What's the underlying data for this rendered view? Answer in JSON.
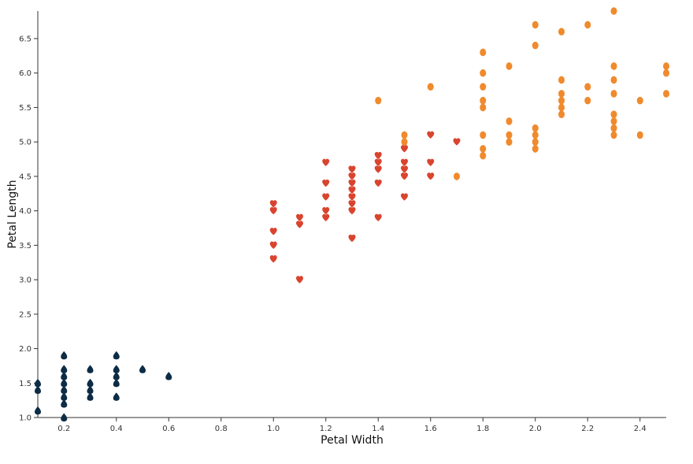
{
  "chart_data": {
    "type": "scatter",
    "xlabel": "Petal Width",
    "ylabel": "Petal Length",
    "xlim": [
      0.1,
      2.5
    ],
    "ylim": [
      1.0,
      6.9
    ],
    "x_ticks": [
      0.2,
      0.4,
      0.6,
      0.8,
      1.0,
      1.2,
      1.4,
      1.6,
      1.8,
      2.0,
      2.2,
      2.4
    ],
    "x_tick_labels": [
      "0.2",
      "0.4",
      "0.6",
      "0.8",
      "1.0",
      "1.2",
      "1.4",
      "1.6",
      "1.8",
      "2.0",
      "2.2",
      "2.4"
    ],
    "y_ticks": [
      1.0,
      1.5,
      2.0,
      2.5,
      3.0,
      3.5,
      4.0,
      4.5,
      5.0,
      5.5,
      6.0,
      6.5
    ],
    "y_tick_labels": [
      "1.0",
      "1.5",
      "2.0",
      "2.5",
      "3.0",
      "3.5",
      "4.0",
      "4.5",
      "5.0",
      "5.5",
      "6.0",
      "6.5"
    ],
    "grid": false,
    "series": [
      {
        "marker": "drop",
        "color": "#0d2c45",
        "points": [
          [
            0.1,
            1.5
          ],
          [
            0.1,
            1.4
          ],
          [
            0.1,
            1.1
          ],
          [
            0.2,
            1.9
          ],
          [
            0.2,
            1.7
          ],
          [
            0.2,
            1.6
          ],
          [
            0.2,
            1.5
          ],
          [
            0.2,
            1.4
          ],
          [
            0.2,
            1.3
          ],
          [
            0.2,
            1.2
          ],
          [
            0.2,
            1.0
          ],
          [
            0.3,
            1.7
          ],
          [
            0.3,
            1.5
          ],
          [
            0.3,
            1.4
          ],
          [
            0.3,
            1.3
          ],
          [
            0.4,
            1.9
          ],
          [
            0.4,
            1.7
          ],
          [
            0.4,
            1.6
          ],
          [
            0.4,
            1.5
          ],
          [
            0.4,
            1.3
          ],
          [
            0.5,
            1.7
          ],
          [
            0.6,
            1.6
          ]
        ]
      },
      {
        "marker": "heart",
        "color": "#d9442f",
        "points": [
          [
            1.0,
            4.1
          ],
          [
            1.0,
            4.0
          ],
          [
            1.0,
            3.7
          ],
          [
            1.0,
            3.5
          ],
          [
            1.0,
            3.3
          ],
          [
            1.1,
            3.9
          ],
          [
            1.1,
            3.8
          ],
          [
            1.1,
            3.0
          ],
          [
            1.2,
            4.7
          ],
          [
            1.2,
            4.4
          ],
          [
            1.2,
            4.2
          ],
          [
            1.2,
            4.0
          ],
          [
            1.2,
            3.9
          ],
          [
            1.3,
            4.6
          ],
          [
            1.3,
            4.5
          ],
          [
            1.3,
            4.4
          ],
          [
            1.3,
            4.3
          ],
          [
            1.3,
            4.2
          ],
          [
            1.3,
            4.1
          ],
          [
            1.3,
            4.0
          ],
          [
            1.3,
            3.6
          ],
          [
            1.4,
            4.8
          ],
          [
            1.4,
            4.7
          ],
          [
            1.4,
            4.6
          ],
          [
            1.4,
            4.4
          ],
          [
            1.4,
            3.9
          ],
          [
            1.5,
            4.9
          ],
          [
            1.5,
            4.7
          ],
          [
            1.5,
            4.6
          ],
          [
            1.5,
            4.5
          ],
          [
            1.5,
            4.2
          ],
          [
            1.6,
            5.1
          ],
          [
            1.6,
            4.7
          ],
          [
            1.6,
            4.5
          ],
          [
            1.7,
            5.0
          ]
        ]
      },
      {
        "marker": "circle",
        "color": "#f08a2c",
        "points": [
          [
            1.4,
            5.6
          ],
          [
            1.5,
            5.1
          ],
          [
            1.5,
            5.0
          ],
          [
            1.6,
            5.8
          ],
          [
            1.7,
            4.5
          ],
          [
            1.8,
            6.3
          ],
          [
            1.8,
            6.0
          ],
          [
            1.8,
            5.8
          ],
          [
            1.8,
            5.6
          ],
          [
            1.8,
            5.5
          ],
          [
            1.8,
            5.1
          ],
          [
            1.8,
            4.9
          ],
          [
            1.8,
            4.8
          ],
          [
            1.9,
            6.1
          ],
          [
            1.9,
            5.3
          ],
          [
            1.9,
            5.1
          ],
          [
            1.9,
            5.0
          ],
          [
            2.0,
            6.7
          ],
          [
            2.0,
            6.4
          ],
          [
            2.0,
            5.2
          ],
          [
            2.0,
            5.1
          ],
          [
            2.0,
            5.0
          ],
          [
            2.0,
            4.9
          ],
          [
            2.1,
            6.6
          ],
          [
            2.1,
            5.9
          ],
          [
            2.1,
            5.7
          ],
          [
            2.1,
            5.6
          ],
          [
            2.1,
            5.5
          ],
          [
            2.1,
            5.4
          ],
          [
            2.2,
            6.7
          ],
          [
            2.2,
            5.8
          ],
          [
            2.2,
            5.6
          ],
          [
            2.3,
            6.9
          ],
          [
            2.3,
            6.1
          ],
          [
            2.3,
            5.9
          ],
          [
            2.3,
            5.7
          ],
          [
            2.3,
            5.4
          ],
          [
            2.3,
            5.3
          ],
          [
            2.3,
            5.2
          ],
          [
            2.3,
            5.1
          ],
          [
            2.4,
            5.6
          ],
          [
            2.4,
            5.1
          ],
          [
            2.5,
            6.1
          ],
          [
            2.5,
            6.0
          ],
          [
            2.5,
            5.7
          ]
        ]
      }
    ]
  }
}
